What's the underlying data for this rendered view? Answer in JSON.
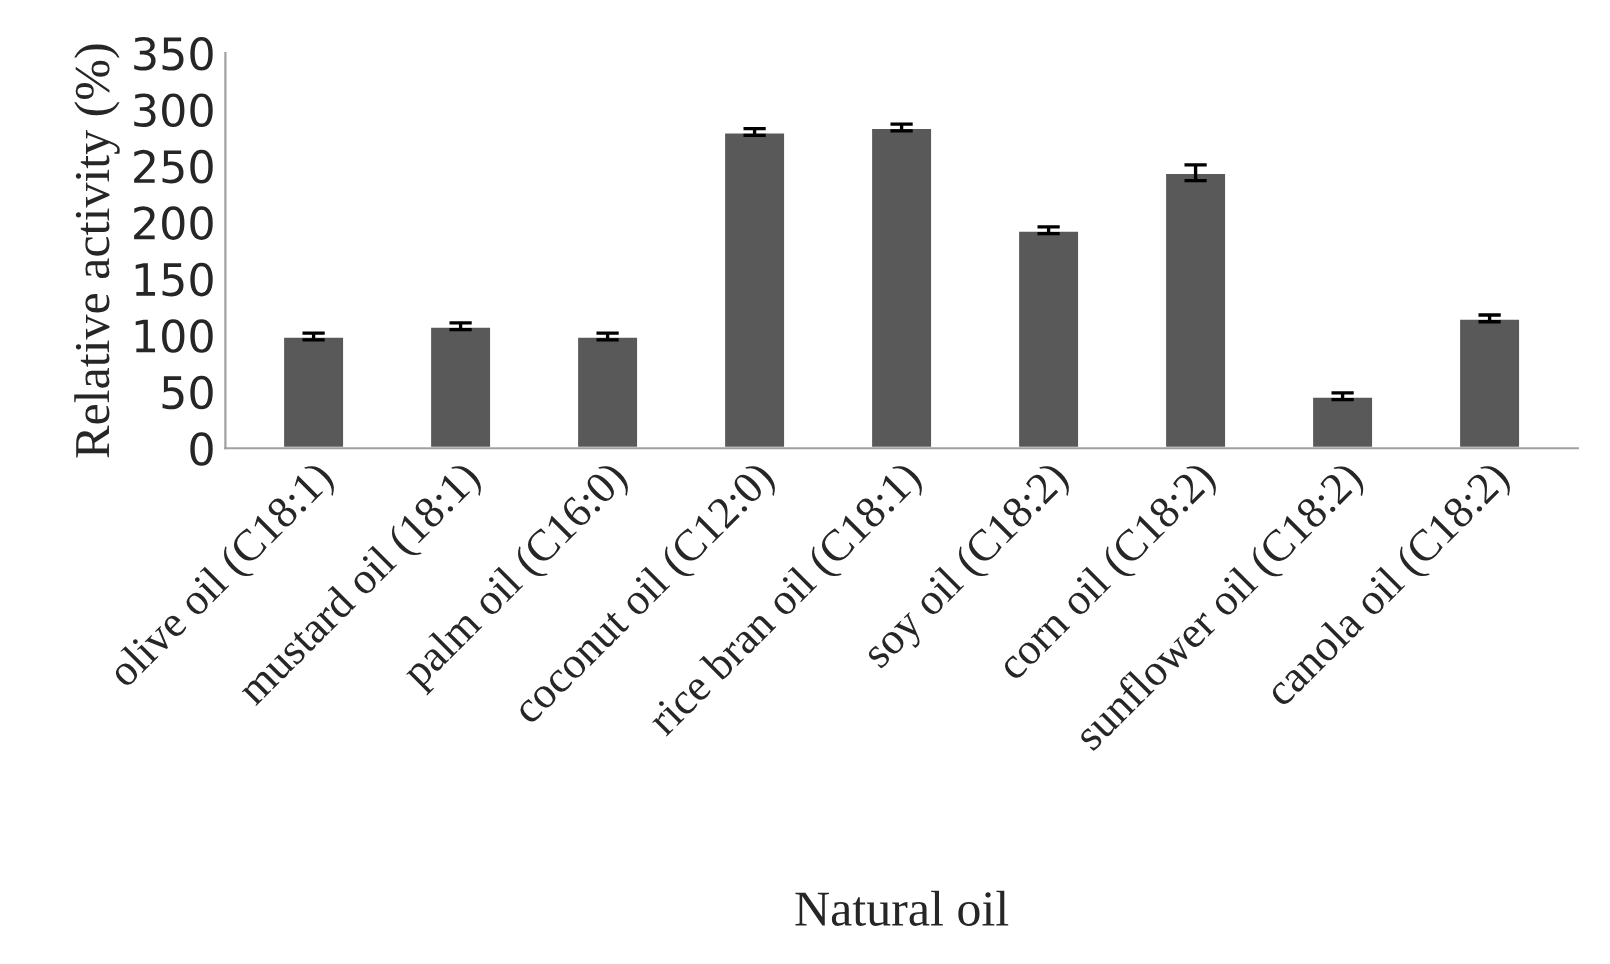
{
  "chart_data": {
    "type": "bar",
    "xlabel": "Natural oil",
    "ylabel": "Relative activity (%)",
    "categories": [
      "olive oil (C18:1)",
      "mustard oil (18:1)",
      "palm oil (C16:0)",
      "coconut oil (C12:0)",
      "rice bran oil (C18:1)",
      "soy oil (C18:2)",
      "corn oil (C18:2)",
      "sunflower oil (C18:2)",
      "canola oil (C18:2)"
    ],
    "values": [
      99,
      108,
      99,
      280,
      284,
      193,
      244,
      46,
      115
    ],
    "errors": [
      3,
      3,
      3,
      3,
      3,
      3,
      7,
      3,
      3
    ],
    "color": "#595959",
    "ylim": [
      0,
      350
    ],
    "yticks": [
      0,
      50,
      100,
      150,
      200,
      250,
      300,
      350
    ],
    "grid": false,
    "legend": false
  }
}
